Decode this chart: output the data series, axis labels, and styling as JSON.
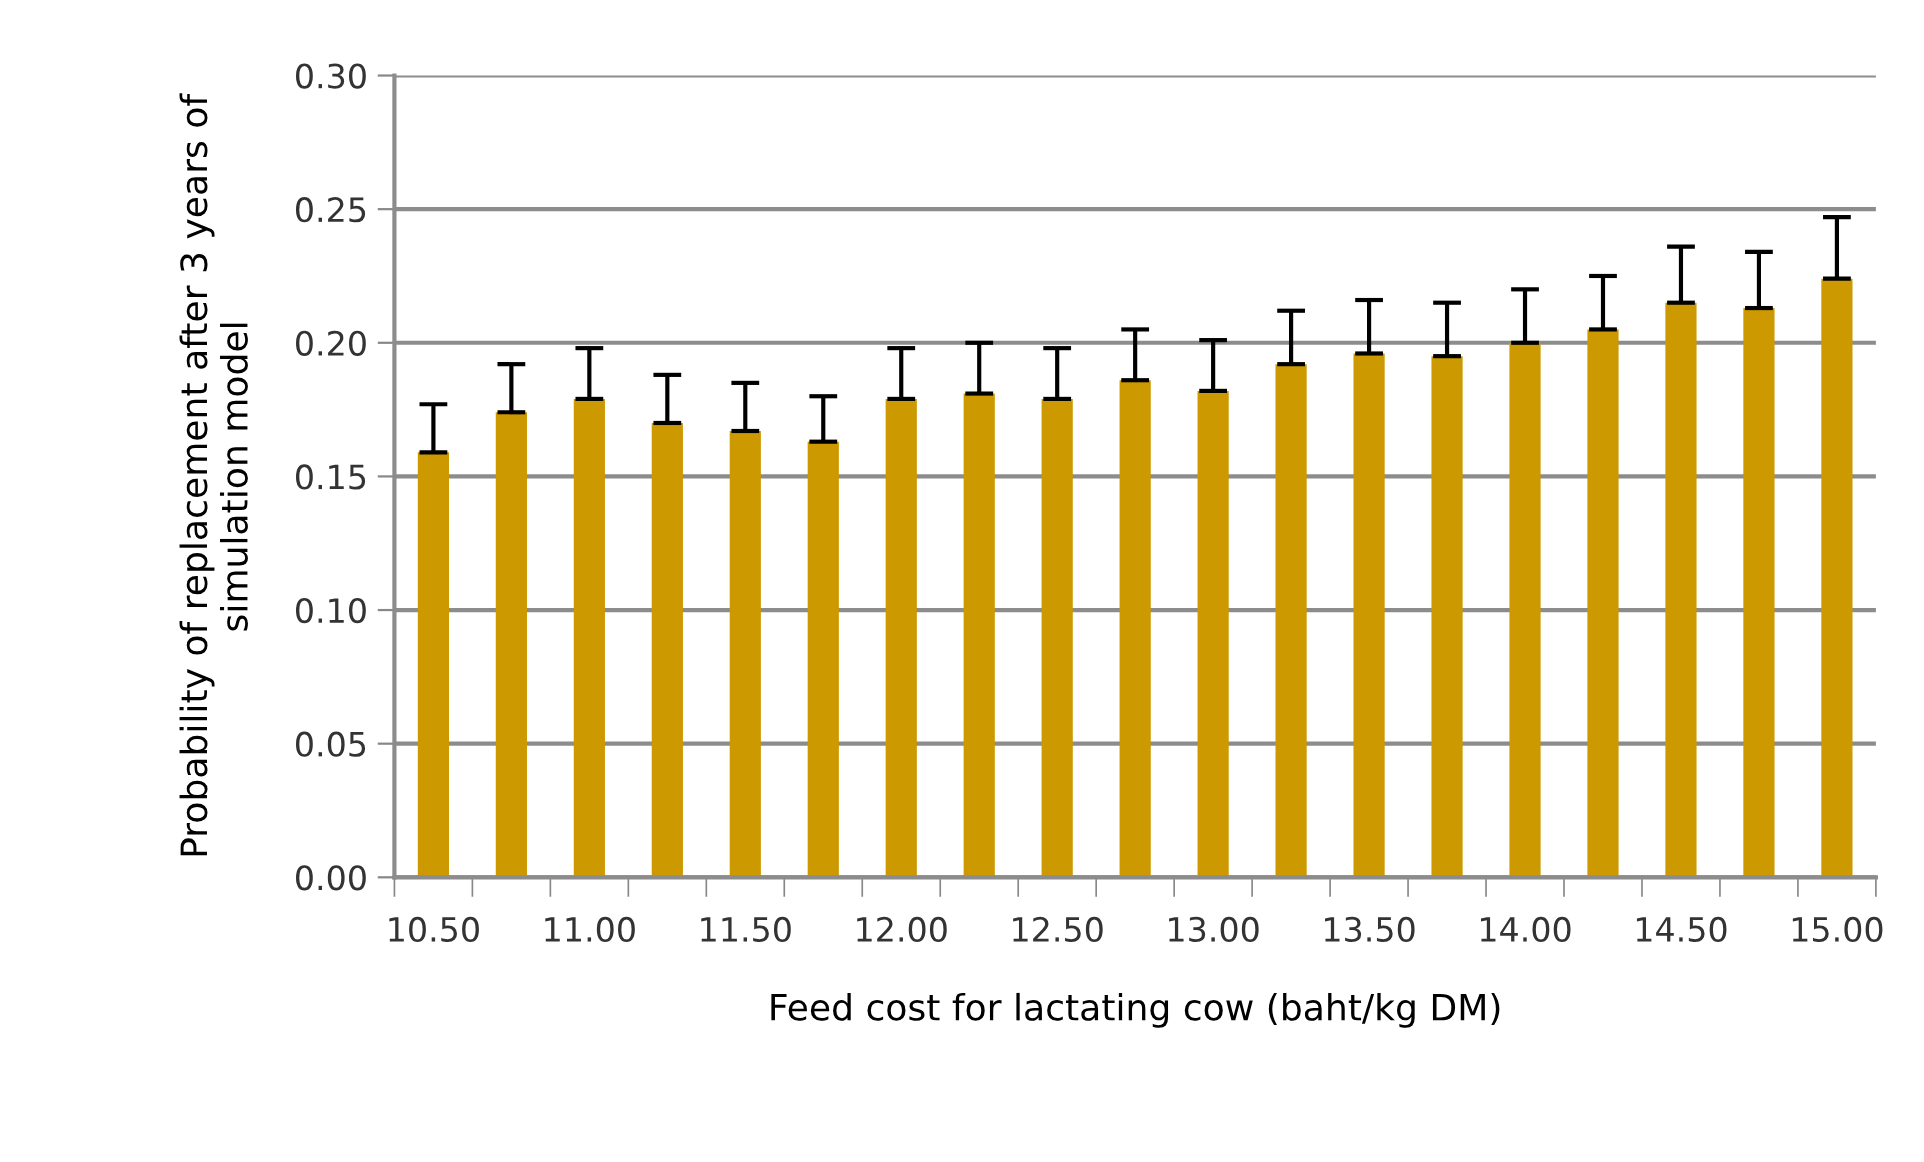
{
  "chart_data": {
    "type": "bar",
    "xlabel": "Feed cost for lactating cow (baht/kg DM)",
    "ylabel": "Probability of replacement after 3 years of simulation model",
    "categories": [
      "10.50",
      null,
      "11.00",
      null,
      "11.50",
      null,
      "12.00",
      null,
      "12.50",
      null,
      "13.00",
      null,
      "13.50",
      null,
      "14.00",
      null,
      "14.50",
      null,
      "15.00"
    ],
    "values": [
      0.159,
      0.174,
      0.179,
      0.17,
      0.167,
      0.163,
      0.179,
      0.181,
      0.179,
      0.186,
      0.182,
      0.192,
      0.196,
      0.195,
      0.2,
      0.205,
      0.215,
      0.213,
      0.224
    ],
    "errors": [
      [
        0.159,
        0.177
      ],
      [
        0.174,
        0.192
      ],
      [
        0.179,
        0.198
      ],
      [
        0.17,
        0.188
      ],
      [
        0.167,
        0.185
      ],
      [
        0.163,
        0.18
      ],
      [
        0.179,
        0.198
      ],
      [
        0.181,
        0.2
      ],
      [
        0.179,
        0.198
      ],
      [
        0.186,
        0.205
      ],
      [
        0.182,
        0.201
      ],
      [
        0.192,
        0.212
      ],
      [
        0.196,
        0.216
      ],
      [
        0.195,
        0.215
      ],
      [
        0.2,
        0.22
      ],
      [
        0.205,
        0.225
      ],
      [
        0.215,
        0.236
      ],
      [
        0.213,
        0.234
      ],
      [
        0.224,
        0.247
      ]
    ],
    "color": "#cc9900",
    "ylim": [
      0,
      0.3
    ],
    "yticks": [
      {
        "value": 0,
        "label": "0.00"
      },
      {
        "value": 0.05,
        "label": "0.05"
      },
      {
        "value": 0.1,
        "label": "0.10"
      },
      {
        "value": 0.15,
        "label": "0.15"
      },
      {
        "value": 0.2,
        "label": "0.20"
      },
      {
        "value": 0.25,
        "label": "0.25"
      },
      {
        "value": 0.3,
        "label": "0.30"
      }
    ],
    "grid": "y"
  }
}
